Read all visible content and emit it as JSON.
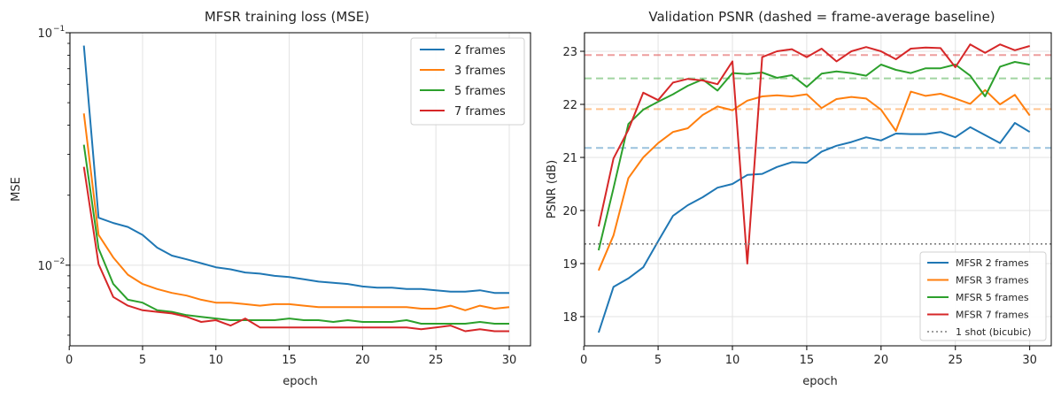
{
  "chart_data": [
    {
      "type": "line",
      "title": "MFSR training loss (MSE)",
      "xlabel": "epoch",
      "ylabel": "MSE",
      "yscale": "log",
      "xlim": [
        0.05,
        31.45
      ],
      "ylim": [
        0.0045,
        0.1
      ],
      "xticks": [
        "0",
        "5",
        "10",
        "15",
        "20",
        "25",
        "30"
      ],
      "yticks": [
        "10",
        "10"
      ],
      "yticks_exponent": [
        "−1",
        "−2"
      ],
      "grid": true,
      "legend_position": "top-right",
      "x": [
        1,
        2,
        3,
        4,
        5,
        6,
        7,
        8,
        9,
        10,
        11,
        12,
        13,
        14,
        15,
        16,
        17,
        18,
        19,
        20,
        21,
        22,
        23,
        24,
        25,
        26,
        27,
        28,
        29,
        30
      ],
      "series": [
        {
          "name": "2 frames",
          "color": "#1f77b4",
          "values": [
            0.088,
            0.016,
            0.0152,
            0.0146,
            0.0135,
            0.0119,
            0.011,
            0.0106,
            0.0102,
            0.0098,
            0.0096,
            0.0093,
            0.0092,
            0.009,
            0.0089,
            0.0087,
            0.0085,
            0.0084,
            0.0083,
            0.0081,
            0.008,
            0.008,
            0.0079,
            0.0079,
            0.0078,
            0.0077,
            0.0077,
            0.0078,
            0.0076,
            0.0076
          ]
        },
        {
          "name": "3 frames",
          "color": "#ff7f0e",
          "values": [
            0.045,
            0.0135,
            0.0108,
            0.0091,
            0.0083,
            0.0079,
            0.0076,
            0.0074,
            0.0071,
            0.0069,
            0.0069,
            0.0068,
            0.0067,
            0.0068,
            0.0068,
            0.0067,
            0.0066,
            0.0066,
            0.0066,
            0.0066,
            0.0066,
            0.0066,
            0.0066,
            0.0065,
            0.0065,
            0.0067,
            0.0064,
            0.0067,
            0.0065,
            0.0066
          ]
        },
        {
          "name": "5 frames",
          "color": "#2ca02c",
          "values": [
            0.033,
            0.0118,
            0.0083,
            0.0071,
            0.0069,
            0.0064,
            0.0063,
            0.0061,
            0.006,
            0.0059,
            0.0058,
            0.0058,
            0.0058,
            0.0058,
            0.0059,
            0.0058,
            0.0058,
            0.0057,
            0.0058,
            0.0057,
            0.0057,
            0.0057,
            0.0058,
            0.0056,
            0.0056,
            0.0056,
            0.0056,
            0.0057,
            0.0056,
            0.0056
          ]
        },
        {
          "name": "7 frames",
          "color": "#d62728",
          "values": [
            0.0265,
            0.0101,
            0.0073,
            0.0067,
            0.0064,
            0.0063,
            0.0062,
            0.006,
            0.0057,
            0.0058,
            0.0055,
            0.0059,
            0.0054,
            0.0054,
            0.0054,
            0.0054,
            0.0054,
            0.0054,
            0.0054,
            0.0054,
            0.0054,
            0.0054,
            0.0054,
            0.0053,
            0.0054,
            0.0055,
            0.0052,
            0.0053,
            0.0052,
            0.0052
          ]
        }
      ]
    },
    {
      "type": "line",
      "title": "Validation PSNR (dashed = frame-average baseline)",
      "xlabel": "epoch",
      "ylabel": "PSNR (dB)",
      "xlim": [
        0.05,
        31.45
      ],
      "ylim": [
        17.45,
        23.35
      ],
      "xticks": [
        "0",
        "5",
        "10",
        "15",
        "20",
        "25",
        "30"
      ],
      "yticks": [
        "18",
        "19",
        "20",
        "21",
        "22",
        "23"
      ],
      "grid": true,
      "legend_position": "bottom-right",
      "x": [
        1,
        2,
        3,
        4,
        5,
        6,
        7,
        8,
        9,
        10,
        11,
        12,
        13,
        14,
        15,
        16,
        17,
        18,
        19,
        20,
        21,
        22,
        23,
        24,
        25,
        26,
        27,
        28,
        29,
        30
      ],
      "series": [
        {
          "name": "MFSR 2 frames",
          "color": "#1f77b4",
          "values": [
            17.7,
            18.56,
            18.72,
            18.93,
            19.42,
            19.9,
            20.1,
            20.25,
            20.43,
            20.5,
            20.67,
            20.69,
            20.82,
            20.91,
            20.9,
            21.11,
            21.22,
            21.29,
            21.38,
            21.32,
            21.45,
            21.44,
            21.44,
            21.48,
            21.38,
            21.57,
            21.42,
            21.27,
            21.65,
            21.48
          ]
        },
        {
          "name": "MFSR 3 frames",
          "color": "#ff7f0e",
          "values": [
            18.87,
            19.53,
            20.61,
            21.0,
            21.27,
            21.48,
            21.55,
            21.8,
            21.96,
            21.89,
            22.07,
            22.15,
            22.17,
            22.15,
            22.19,
            21.93,
            22.1,
            22.14,
            22.11,
            21.9,
            21.5,
            22.24,
            22.16,
            22.2,
            22.11,
            22.01,
            22.27,
            22.0,
            22.18,
            21.79
          ]
        },
        {
          "name": "MFSR 5 frames",
          "color": "#2ca02c",
          "values": [
            19.25,
            20.42,
            21.63,
            21.9,
            22.05,
            22.19,
            22.35,
            22.47,
            22.26,
            22.59,
            22.57,
            22.6,
            22.5,
            22.55,
            22.33,
            22.58,
            22.62,
            22.59,
            22.54,
            22.75,
            22.65,
            22.59,
            22.68,
            22.68,
            22.75,
            22.54,
            22.15,
            22.71,
            22.8,
            22.75
          ]
        },
        {
          "name": "MFSR 7 frames",
          "color": "#d62728",
          "values": [
            19.7,
            20.98,
            21.52,
            22.22,
            22.08,
            22.41,
            22.48,
            22.45,
            22.38,
            22.81,
            19.0,
            22.89,
            23.0,
            23.04,
            22.89,
            23.05,
            22.81,
            23.0,
            23.08,
            23.0,
            22.85,
            23.05,
            23.07,
            23.06,
            22.7,
            23.13,
            22.97,
            23.13,
            23.02,
            23.1
          ]
        },
        {
          "name": "1 shot (bicubic)",
          "color": "#7f7f7f",
          "constant": 19.37,
          "style": "dotted"
        }
      ],
      "baselines": [
        {
          "color": "#1f77b4",
          "value": 21.18
        },
        {
          "color": "#ff7f0e",
          "value": 21.91
        },
        {
          "color": "#2ca02c",
          "value": 22.49
        },
        {
          "color": "#d62728",
          "value": 22.93
        }
      ]
    }
  ]
}
